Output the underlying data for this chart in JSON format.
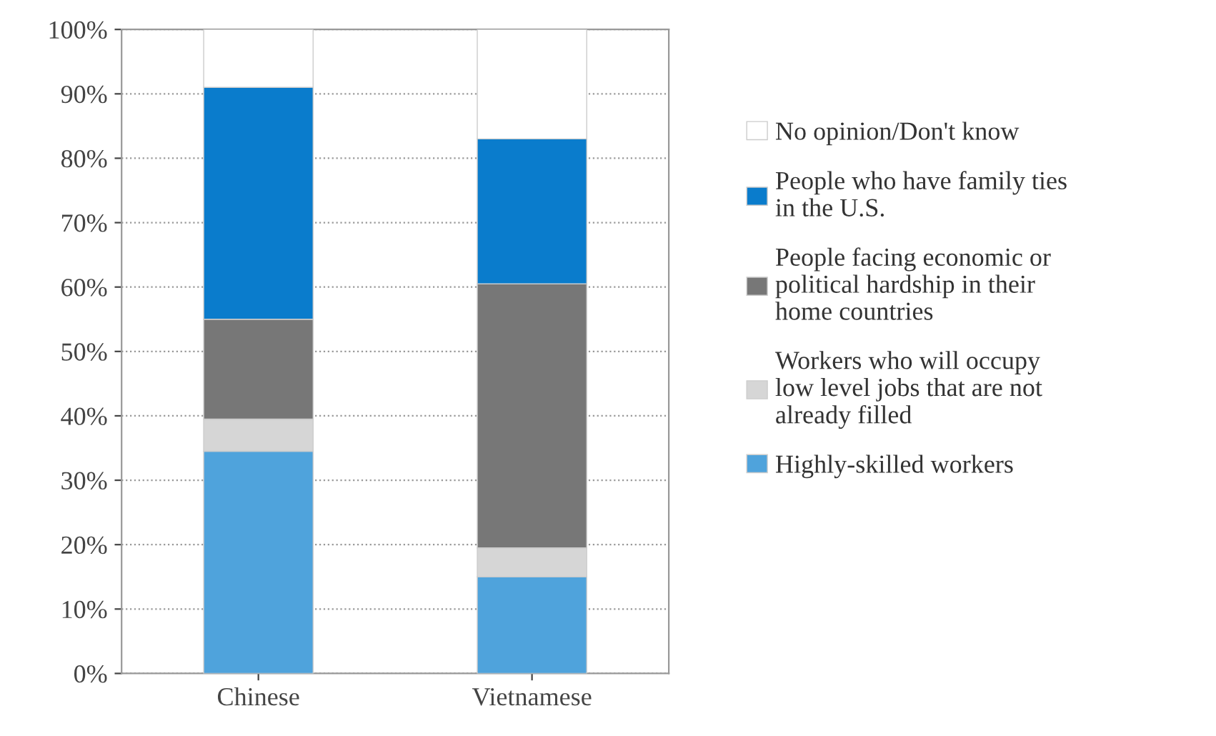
{
  "chart_data": {
    "type": "bar",
    "stacked": true,
    "categories": [
      "Chinese",
      "Vietnamese"
    ],
    "series": [
      {
        "name": "Highly-skilled workers",
        "color": "#4fa3dc",
        "values": [
          34.5,
          15
        ]
      },
      {
        "name": "Workers who will occupy\nlow level jobs that are not\nalready filled",
        "color": "#d6d6d6",
        "values": [
          5,
          4.5
        ]
      },
      {
        "name": "People facing economic or\npolitical hardship in their\nhome countries",
        "color": "#777777",
        "values": [
          15.5,
          41
        ]
      },
      {
        "name": "People who have family ties\nin the U.S.",
        "color": "#0a7ccc",
        "values": [
          36,
          22.5
        ]
      },
      {
        "name": "No opinion/Don't know",
        "color": "#ffffff",
        "values": [
          9,
          17
        ]
      }
    ],
    "ylim": [
      0,
      100
    ],
    "yticks": [
      {
        "value": 0,
        "label": "0%"
      },
      {
        "value": 10,
        "label": "10%"
      },
      {
        "value": 20,
        "label": "20%"
      },
      {
        "value": 30,
        "label": "30%"
      },
      {
        "value": 40,
        "label": "40%"
      },
      {
        "value": 50,
        "label": "50%"
      },
      {
        "value": 60,
        "label": "60%"
      },
      {
        "value": 70,
        "label": "70%"
      },
      {
        "value": 80,
        "label": "80%"
      },
      {
        "value": 90,
        "label": "90%"
      },
      {
        "value": 100,
        "label": "100%"
      }
    ],
    "grid": "y",
    "legend": "right"
  }
}
